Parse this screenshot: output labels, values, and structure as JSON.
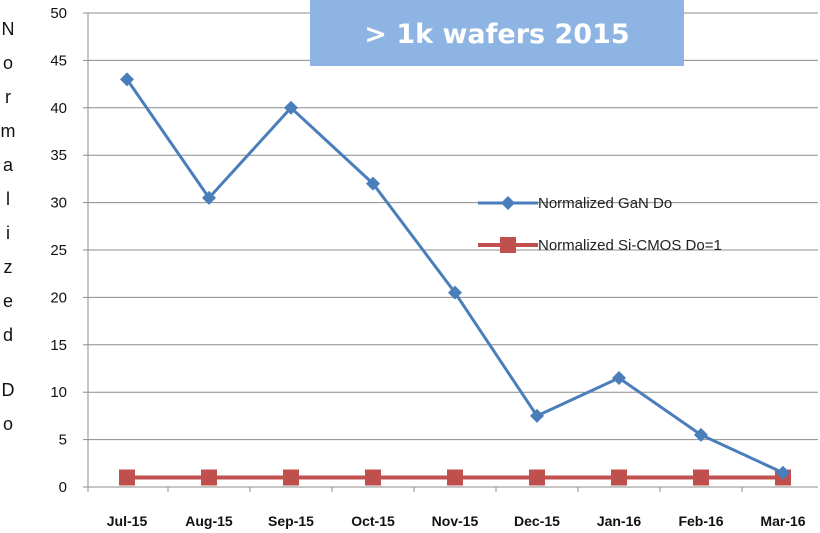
{
  "chart_data": {
    "type": "line",
    "categories": [
      "Jul-15",
      "Aug-15",
      "Sep-15",
      "Oct-15",
      "Nov-15",
      "Dec-15",
      "Jan-16",
      "Feb-16",
      "Mar-16"
    ],
    "series": [
      {
        "name": "Normalized GaN Do",
        "values": [
          43,
          30.5,
          40,
          32,
          20.5,
          7.5,
          11.5,
          5.5,
          1.5
        ],
        "color": "#4A7EBB",
        "marker": "diamond"
      },
      {
        "name": "Normalized Si-CMOS Do=1",
        "values": [
          1,
          1,
          1,
          1,
          1,
          1,
          1,
          1,
          1
        ],
        "color": "#C0504D",
        "marker": "square"
      }
    ],
    "ylabel": "Normalized Do",
    "ylim": [
      0,
      50
    ],
    "yticks": [
      0,
      5,
      10,
      15,
      20,
      25,
      30,
      35,
      40,
      45,
      50
    ],
    "grid": true,
    "legend_position": "right",
    "annotation": {
      "text": "> 1k wafers 2015",
      "background": "#8DB4E2",
      "text_color": "#FFFFFF"
    }
  }
}
